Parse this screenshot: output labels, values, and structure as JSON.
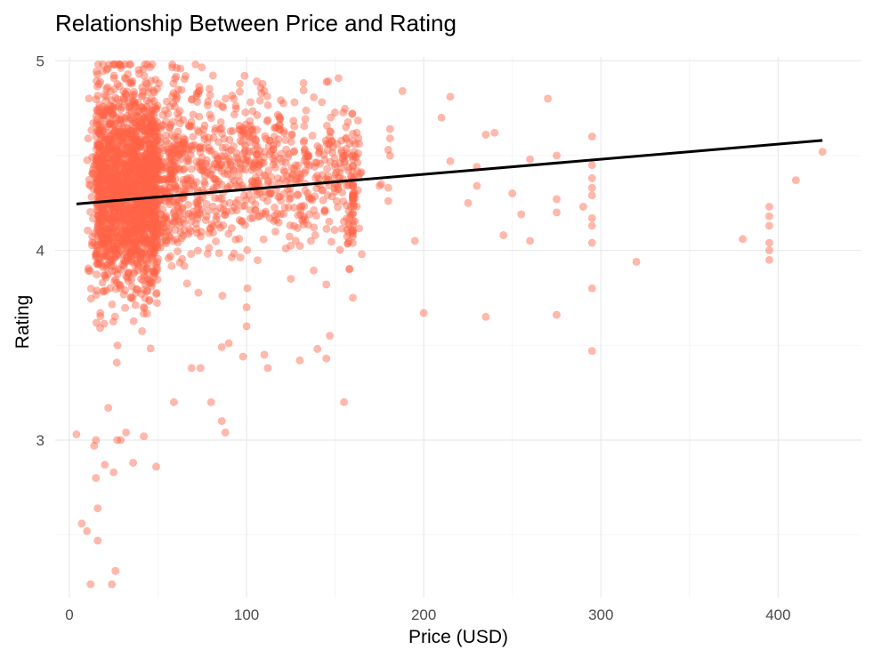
{
  "chart_data": {
    "type": "scatter",
    "title": "Relationship Between Price and Rating",
    "xlabel": "Price (USD)",
    "ylabel": "Rating",
    "xlim": [
      -8,
      447
    ],
    "ylim": [
      2.17,
      5.02
    ],
    "x_ticks": [
      0,
      100,
      200,
      300,
      400
    ],
    "x_minor_ticks": [
      50,
      150,
      250,
      350
    ],
    "y_ticks": [
      3,
      4,
      5
    ],
    "y_minor_ticks": [
      2.5,
      3.5,
      4.5
    ],
    "grid": true,
    "legend": "none",
    "point_color": "#FF6347",
    "point_opacity": 0.45,
    "line_color": "#000000",
    "series": [
      {
        "type": "scatter",
        "note_points": "dense cluster of roughly 2500 reviews between $5 and $60 with ratings 3.0-5.0; sparse points listed below",
        "points": [
          [
            4,
            3.03
          ],
          [
            7,
            2.56
          ],
          [
            10,
            2.52
          ],
          [
            12,
            2.24
          ],
          [
            14,
            2.97
          ],
          [
            15,
            3.0
          ],
          [
            15,
            2.8
          ],
          [
            16,
            2.47
          ],
          [
            16,
            2.64
          ],
          [
            20,
            2.87
          ],
          [
            22,
            3.17
          ],
          [
            24,
            2.24
          ],
          [
            25,
            2.83
          ],
          [
            26,
            2.31
          ],
          [
            27,
            3.0
          ],
          [
            29,
            3.0
          ],
          [
            32,
            3.04
          ],
          [
            36,
            2.88
          ],
          [
            42,
            3.02
          ],
          [
            49,
            2.86
          ],
          [
            59,
            3.2
          ],
          [
            69,
            3.38
          ],
          [
            74,
            3.38
          ],
          [
            80,
            3.2
          ],
          [
            86,
            3.1
          ],
          [
            88,
            3.04
          ],
          [
            86,
            3.49
          ],
          [
            90,
            3.51
          ],
          [
            98,
            3.44
          ],
          [
            100,
            3.6
          ],
          [
            100,
            3.7
          ],
          [
            110,
            3.45
          ],
          [
            112,
            3.38
          ],
          [
            125,
            3.85
          ],
          [
            130,
            3.42
          ],
          [
            140,
            3.48
          ],
          [
            145,
            3.43
          ],
          [
            147,
            3.55
          ],
          [
            155,
            3.2
          ],
          [
            158,
            3.9
          ],
          [
            145,
            3.82
          ],
          [
            160,
            3.75
          ],
          [
            165,
            3.98
          ],
          [
            175,
            4.34
          ],
          [
            176,
            4.35
          ],
          [
            180,
            4.26
          ],
          [
            180,
            4.33
          ],
          [
            181,
            4.5
          ],
          [
            181,
            4.59
          ],
          [
            181,
            4.64
          ],
          [
            180,
            4.53
          ],
          [
            188,
            4.84
          ],
          [
            195,
            4.05
          ],
          [
            200,
            3.67
          ],
          [
            210,
            4.7
          ],
          [
            215,
            4.47
          ],
          [
            215,
            4.81
          ],
          [
            225,
            4.25
          ],
          [
            230,
            4.44
          ],
          [
            230,
            4.34
          ],
          [
            235,
            3.65
          ],
          [
            235,
            4.61
          ],
          [
            240,
            4.62
          ],
          [
            245,
            4.08
          ],
          [
            250,
            4.3
          ],
          [
            255,
            4.19
          ],
          [
            260,
            4.48
          ],
          [
            260,
            4.05
          ],
          [
            270,
            4.8
          ],
          [
            275,
            4.5
          ],
          [
            275,
            4.27
          ],
          [
            275,
            4.2
          ],
          [
            275,
            3.66
          ],
          [
            290,
            4.23
          ],
          [
            295,
            4.6
          ],
          [
            295,
            4.45
          ],
          [
            295,
            4.38
          ],
          [
            295,
            4.33
          ],
          [
            295,
            4.29
          ],
          [
            295,
            4.17
          ],
          [
            295,
            4.13
          ],
          [
            295,
            4.04
          ],
          [
            295,
            3.8
          ],
          [
            295,
            3.47
          ],
          [
            320,
            3.94
          ],
          [
            380,
            4.06
          ],
          [
            395,
            4.23
          ],
          [
            395,
            4.18
          ],
          [
            395,
            4.13
          ],
          [
            395,
            4.04
          ],
          [
            395,
            4.0
          ],
          [
            395,
            3.95
          ],
          [
            410,
            4.37
          ],
          [
            425,
            4.52
          ]
        ]
      },
      {
        "type": "line",
        "note": "linear trend line",
        "x": [
          4,
          425
        ],
        "y": [
          4.245,
          4.58
        ]
      }
    ]
  }
}
